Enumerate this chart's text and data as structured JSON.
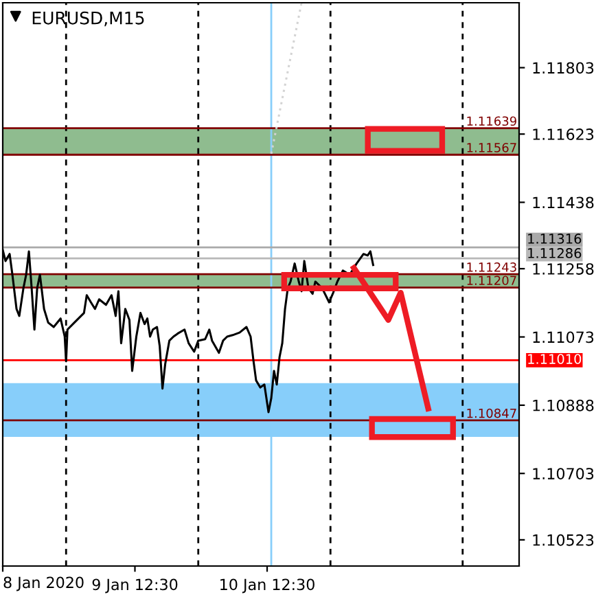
{
  "chart_data": {
    "type": "line",
    "title": "EURUSD,M15",
    "xlim": [
      "2020-01-08T12:30",
      "2020-01-12T10:15"
    ],
    "annotations": [
      "8 Jan 2020"
    ],
    "xticks": [
      {
        "value": "2020-01-08T12:30",
        "label": null
      },
      {
        "value": "2020-01-09T12:30",
        "label": "9 Jan 12:30"
      },
      {
        "value": "2020-01-10T12:30",
        "label": "10 Jan 12:30"
      }
    ],
    "ylim": [
      1.10452,
      1.11979
    ],
    "yticks": [
      1.10523,
      1.10703,
      1.10888,
      1.11073,
      1.11258,
      1.11438,
      1.11623,
      1.11803
    ],
    "series": [
      {
        "color": "#000000",
        "x": [
          "2020-01-08T12:30",
          "2020-01-08T13:00",
          "2020-01-08T13:45",
          "2020-01-08T14:15",
          "2020-01-08T15:00",
          "2020-01-08T15:30",
          "2020-01-08T16:15",
          "2020-01-08T16:45",
          "2020-01-08T17:15",
          "2020-01-08T17:45",
          "2020-01-08T18:15",
          "2020-01-08T18:45",
          "2020-01-08T19:15",
          "2020-01-08T20:00",
          "2020-01-08T20:45",
          "2020-01-08T21:45",
          "2020-01-08T23:00",
          "2020-01-08T23:45",
          "2020-01-09T00:00",
          "2020-01-09T00:15",
          "2020-01-09T01:30",
          "2020-01-09T02:15",
          "2020-01-09T03:15",
          "2020-01-09T03:45",
          "2020-01-09T04:30",
          "2020-01-09T05:15",
          "2020-01-09T06:00",
          "2020-01-09T07:15",
          "2020-01-09T08:15",
          "2020-01-09T09:00",
          "2020-01-09T09:30",
          "2020-01-09T10:00",
          "2020-01-09T10:45",
          "2020-01-09T11:30",
          "2020-01-09T12:00",
          "2020-01-09T12:45",
          "2020-01-09T13:30",
          "2020-01-09T14:15",
          "2020-01-09T14:45",
          "2020-01-09T15:15",
          "2020-01-09T15:45",
          "2020-01-09T16:30",
          "2020-01-09T17:00",
          "2020-01-09T17:30",
          "2020-01-09T18:00",
          "2020-01-09T18:45",
          "2020-01-09T19:30",
          "2020-01-09T20:15",
          "2020-01-09T21:30",
          "2020-01-09T22:15",
          "2020-01-09T23:15",
          "2020-01-10T00:00",
          "2020-01-10T01:15",
          "2020-01-10T02:00",
          "2020-01-10T02:30",
          "2020-01-10T03:45",
          "2020-01-10T04:30",
          "2020-01-10T05:15",
          "2020-01-10T06:15",
          "2020-01-10T07:30",
          "2020-01-10T08:45",
          "2020-01-10T09:30",
          "2020-01-10T10:00",
          "2020-01-10T10:30",
          "2020-01-10T11:15",
          "2020-01-10T12:00",
          "2020-01-10T12:45",
          "2020-01-10T13:15",
          "2020-01-10T13:45",
          "2020-01-10T14:15",
          "2020-01-10T14:45",
          "2020-01-10T15:15",
          "2020-01-10T15:45",
          "2020-01-10T16:15",
          "2020-01-10T16:45",
          "2020-01-10T17:30",
          "2020-01-10T18:15",
          "2020-01-10T18:45",
          "2020-01-10T19:15",
          "2020-01-10T20:00",
          "2020-01-10T20:45",
          "2020-01-10T21:15",
          "2020-01-10T22:30",
          "2020-01-10T23:45",
          "2020-01-11T00:30",
          "2020-01-11T01:15",
          "2020-01-11T02:15",
          "2020-01-11T03:30",
          "2020-01-11T04:45",
          "2020-01-11T06:00",
          "2020-01-11T06:45",
          "2020-01-11T07:15",
          "2020-01-11T07:45"
        ],
        "values": [
          1.11309,
          1.11279,
          1.11298,
          1.11242,
          1.11149,
          1.1113,
          1.11205,
          1.11242,
          1.11305,
          1.11205,
          1.11093,
          1.11205,
          1.11242,
          1.11149,
          1.11112,
          1.111,
          1.11123,
          1.11074,
          1.11007,
          1.11093,
          1.11112,
          1.11123,
          1.11138,
          1.11186,
          1.11167,
          1.11149,
          1.11175,
          1.1116,
          1.11186,
          1.1113,
          1.11197,
          1.11056,
          1.11149,
          1.11119,
          1.10981,
          1.11074,
          1.11138,
          1.11108,
          1.11123,
          1.11074,
          1.11093,
          1.111,
          1.11048,
          1.10933,
          1.11,
          1.11063,
          1.11074,
          1.11082,
          1.11093,
          1.11056,
          1.11033,
          1.11063,
          1.11067,
          1.11093,
          1.11063,
          1.1103,
          1.11063,
          1.11074,
          1.11078,
          1.11085,
          1.111,
          1.11074,
          1.11011,
          1.10955,
          1.10936,
          1.10944,
          1.10869,
          1.10907,
          1.10981,
          1.10944,
          1.11018,
          1.11056,
          1.11149,
          1.11205,
          1.11223,
          1.11272,
          1.11223,
          1.11197,
          1.11279,
          1.11205,
          1.1119,
          1.11223,
          1.11205,
          1.11167,
          1.11193,
          1.11223,
          1.11253,
          1.11242,
          1.11272,
          1.11298,
          1.11294,
          1.11305,
          1.11268
        ]
      },
      {
        "color": "#d3d3d3",
        "line_style": "dotted",
        "x": [
          "2020-01-10T13:15",
          "2020-01-10T18:45"
        ],
        "values": [
          1.1157,
          1.11979
        ]
      },
      {
        "color": "#ee1c25",
        "x": [
          "2020-01-11T04:15",
          "2020-01-11T10:30",
          "2020-01-11T12:45",
          "2020-01-11T17:45"
        ],
        "values": [
          1.1126,
          1.11119,
          1.11193,
          1.10879
        ]
      }
    ],
    "bands": [
      {
        "axis": "y",
        "from": 1.10802,
        "to": 1.10948,
        "color": "#87cefa"
      },
      {
        "axis": "y",
        "from": 1.11567,
        "to": 1.11639,
        "color": "#8fbc8f"
      },
      {
        "axis": "y",
        "from": 1.11207,
        "to": 1.11243,
        "color": "#8fbc8f"
      }
    ],
    "ref_lines": [
      {
        "axis": "x",
        "value": "2020-01-09T00:00",
        "color": "#000000",
        "line_style": "dashed"
      },
      {
        "axis": "x",
        "value": "2020-01-10T00:00",
        "color": "#000000",
        "line_style": "dashed"
      },
      {
        "axis": "x",
        "value": "2020-01-11T00:00",
        "color": "#000000",
        "line_style": "dashed"
      },
      {
        "axis": "x",
        "value": "2020-01-12T00:00",
        "color": "#000000",
        "line_style": "dashed"
      },
      {
        "axis": "x",
        "value": "2020-01-10T13:15",
        "color": "#87cefa",
        "line_style": "solid"
      },
      {
        "axis": "y",
        "value": 1.11316,
        "label": "1.11316",
        "color": "#a9a9a9",
        "line_style": "solid"
      },
      {
        "axis": "y",
        "value": 1.11286,
        "label": "1.11286",
        "color": "#b8b8b8",
        "line_style": "solid"
      },
      {
        "axis": "y",
        "value": 1.1101,
        "label": "1.11010",
        "color": "#ff0000",
        "line_style": "solid"
      },
      {
        "axis": "y",
        "value": 1.11639,
        "label": "1.11639",
        "color": "#800000",
        "line_style": "solid"
      },
      {
        "axis": "y",
        "value": 1.11567,
        "label": "1.11567",
        "color": "#800000",
        "line_style": "solid"
      },
      {
        "axis": "y",
        "value": 1.11243,
        "label": "1.11243",
        "color": "#800000",
        "line_style": "solid"
      },
      {
        "axis": "y",
        "value": 1.11207,
        "label": "1.11207",
        "color": "#800000",
        "line_style": "solid"
      },
      {
        "axis": "y",
        "value": 1.10847,
        "label": "1.10847",
        "color": "#800000",
        "line_style": "solid"
      }
    ]
  }
}
